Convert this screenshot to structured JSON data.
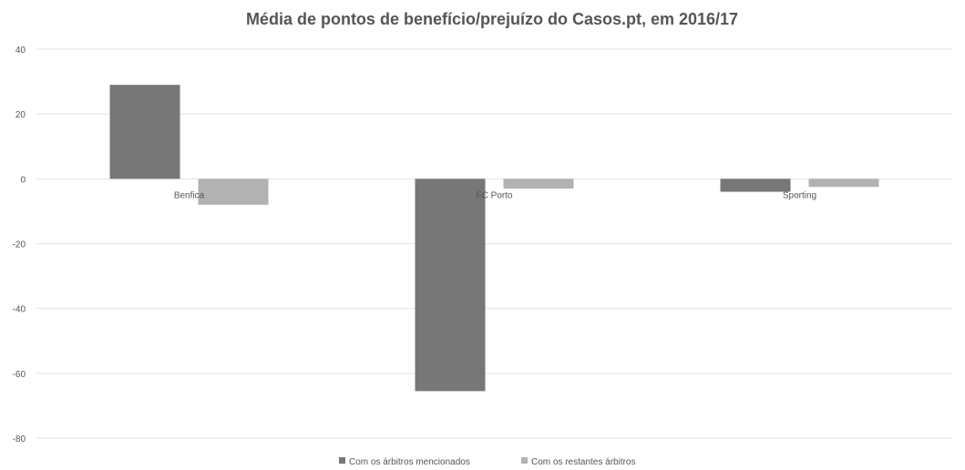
{
  "chart_data": {
    "type": "bar",
    "title": "Média de pontos de benefício/prejuízo do Casos.pt, em 2016/17",
    "xlabel": "",
    "ylabel": "",
    "categories": [
      "Benfica",
      "FC Porto",
      "Sporting"
    ],
    "series": [
      {
        "name": "Com os árbitros mencionados",
        "values": [
          29,
          -65.5,
          -4
        ],
        "color": "#777777"
      },
      {
        "name": "Com os restantes árbitros",
        "values": [
          -8,
          -3,
          -2.5
        ],
        "color": "#b2b2b2"
      }
    ],
    "ylim": [
      -80,
      40
    ],
    "yticks": [
      40,
      20,
      0,
      -20,
      -40,
      -60,
      -80
    ],
    "grid": true,
    "legend_position": "bottom"
  }
}
